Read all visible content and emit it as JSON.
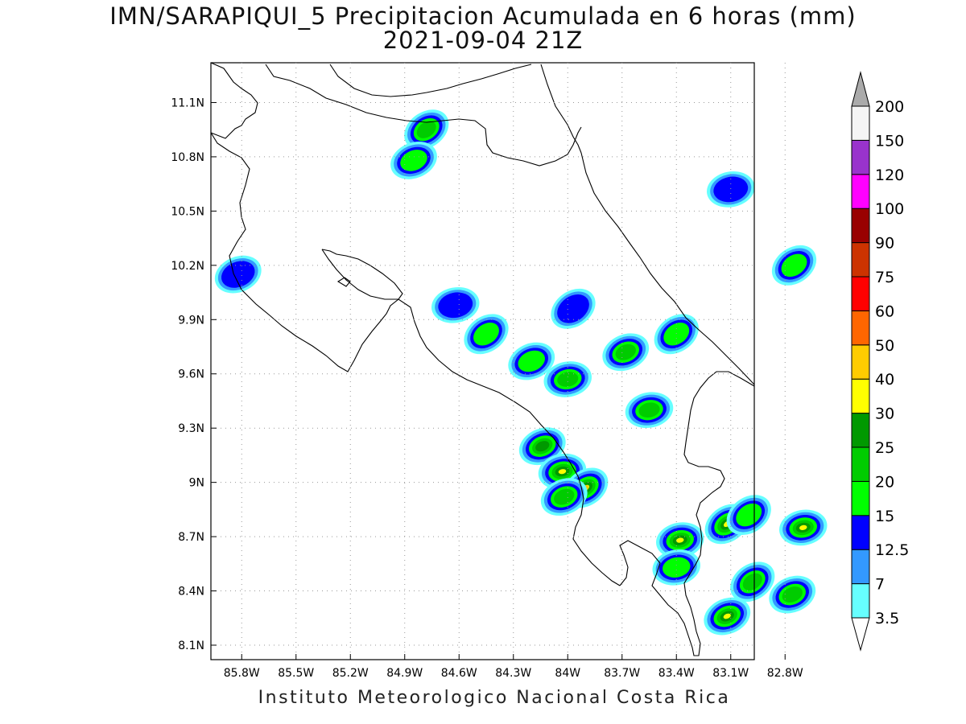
{
  "title": {
    "line1": "IMN/SARAPIQUI_5 Precipitacion Acumulada en 6 horas (mm)",
    "line2": "2021-09-04 21Z"
  },
  "footer": "Instituto Meteorologico Nacional Costa Rica",
  "map": {
    "lon_range": [
      -85.97,
      -82.97
    ],
    "lat_range": [
      8.02,
      11.32
    ],
    "grid": true,
    "x_ticks": [
      "85.8W",
      "85.5W",
      "85.2W",
      "84.9W",
      "84.6W",
      "84.3W",
      "84W",
      "83.7W",
      "83.4W",
      "83.1W",
      "82.8W"
    ],
    "x_tick_values": [
      -85.8,
      -85.5,
      -85.2,
      -84.9,
      -84.6,
      -84.3,
      -84.0,
      -83.7,
      -83.4,
      -83.1,
      -82.8
    ],
    "y_ticks": [
      "8.1N",
      "8.4N",
      "8.7N",
      "9N",
      "9.3N",
      "9.6N",
      "9.9N",
      "10.2N",
      "10.5N",
      "10.8N",
      "11.1N"
    ],
    "y_tick_values": [
      8.1,
      8.4,
      8.7,
      9.0,
      9.3,
      9.6,
      9.9,
      10.2,
      10.5,
      10.8,
      11.1
    ]
  },
  "colorbar": {
    "levels": [
      "3.5",
      "7",
      "12.5",
      "15",
      "20",
      "25",
      "30",
      "40",
      "50",
      "60",
      "75",
      "90",
      "100",
      "120",
      "150",
      "200"
    ],
    "colors": [
      "#66ffff",
      "#3399ff",
      "#0000ff",
      "#00ff00",
      "#00cc00",
      "#009900",
      "#ffff00",
      "#ffcc00",
      "#ff6600",
      "#ff0000",
      "#cc3300",
      "#990000",
      "#ff00ff",
      "#9933cc",
      "#f5f5f5",
      "#aaaaaa"
    ]
  },
  "cells": [
    {
      "lon": -84.78,
      "lat": 10.95,
      "level": 4
    },
    {
      "lon": -84.85,
      "lat": 10.78,
      "level": 3
    },
    {
      "lon": -84.62,
      "lat": 9.98,
      "level": 2
    },
    {
      "lon": -84.45,
      "lat": 9.82,
      "level": 3
    },
    {
      "lon": -84.2,
      "lat": 9.67,
      "level": 3
    },
    {
      "lon": -84.0,
      "lat": 9.57,
      "level": 4
    },
    {
      "lon": -83.97,
      "lat": 9.96,
      "level": 2
    },
    {
      "lon": -83.68,
      "lat": 9.72,
      "level": 4
    },
    {
      "lon": -83.55,
      "lat": 9.4,
      "level": 4
    },
    {
      "lon": -83.4,
      "lat": 9.82,
      "level": 3
    },
    {
      "lon": -84.14,
      "lat": 9.2,
      "level": 5
    },
    {
      "lon": -84.03,
      "lat": 9.06,
      "level": 6
    },
    {
      "lon": -83.9,
      "lat": 8.97,
      "level": 7
    },
    {
      "lon": -84.02,
      "lat": 8.92,
      "level": 4
    },
    {
      "lon": -83.38,
      "lat": 8.68,
      "level": 6
    },
    {
      "lon": -83.12,
      "lat": 8.77,
      "level": 6
    },
    {
      "lon": -83.12,
      "lat": 8.26,
      "level": 6
    },
    {
      "lon": -82.7,
      "lat": 8.75,
      "level": 6
    },
    {
      "lon": -83.0,
      "lat": 8.82,
      "level": 3
    },
    {
      "lon": -82.76,
      "lat": 8.38,
      "level": 4
    },
    {
      "lon": -83.4,
      "lat": 8.53,
      "level": 3
    },
    {
      "lon": -82.75,
      "lat": 10.2,
      "level": 3
    },
    {
      "lon": -85.82,
      "lat": 10.15,
      "level": 2
    },
    {
      "lon": -83.1,
      "lat": 10.62,
      "level": 2
    },
    {
      "lon": -82.98,
      "lat": 8.45,
      "level": 4
    }
  ]
}
